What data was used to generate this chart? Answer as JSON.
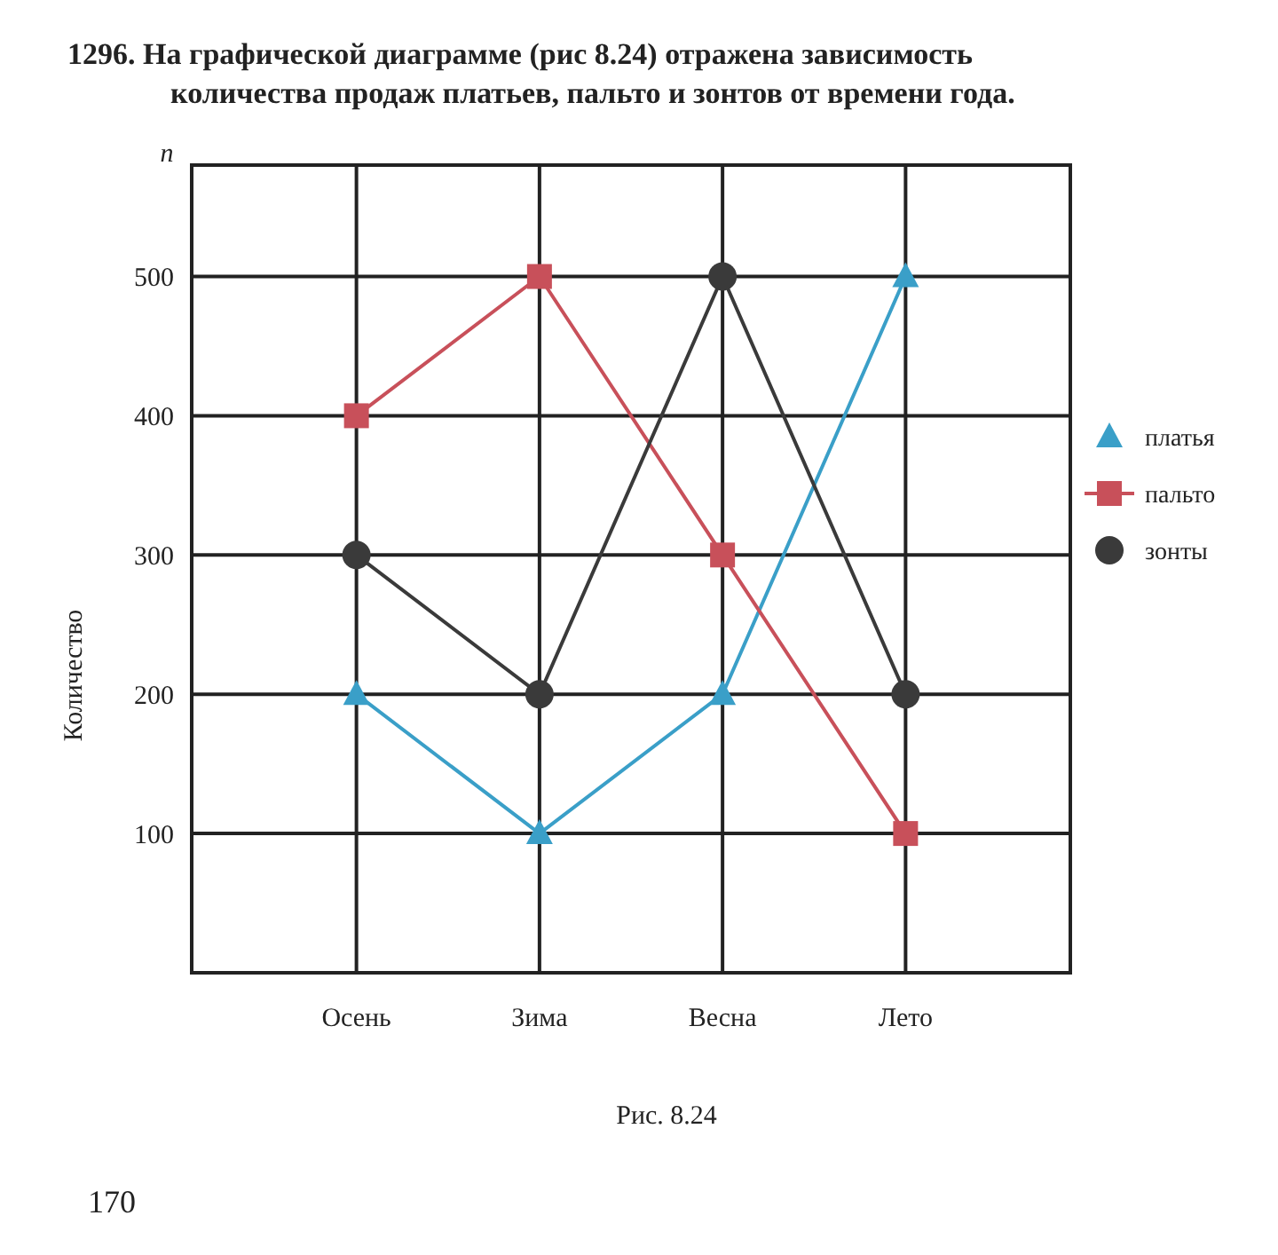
{
  "chart_data": {
    "type": "line",
    "title": "1296. На графической диаграмме (рис 8.24) отражена зависимость количества продаж платьев, пальто и зонтов от времени года.",
    "ylabel": "Количество",
    "annotations": [
      "n",
      "Рис. 8.24",
      "170"
    ],
    "categories": [
      "Осень",
      "Зима",
      "Весна",
      "Лето"
    ],
    "series": [
      {
        "name": "платья",
        "color": "#3a9fc8",
        "marker": "triangle",
        "values": [
          200,
          100,
          200,
          500
        ]
      },
      {
        "name": "пальто",
        "color": "#c8505a",
        "marker": "square",
        "values": [
          400,
          500,
          300,
          100
        ]
      },
      {
        "name": "зонты",
        "color": "#3a3a3a",
        "marker": "circle",
        "values": [
          300,
          200,
          500,
          200
        ]
      }
    ],
    "ylim": [
      0,
      580
    ],
    "yticks": [
      100,
      200,
      300,
      400,
      500
    ],
    "grid": true,
    "legend": "right"
  }
}
